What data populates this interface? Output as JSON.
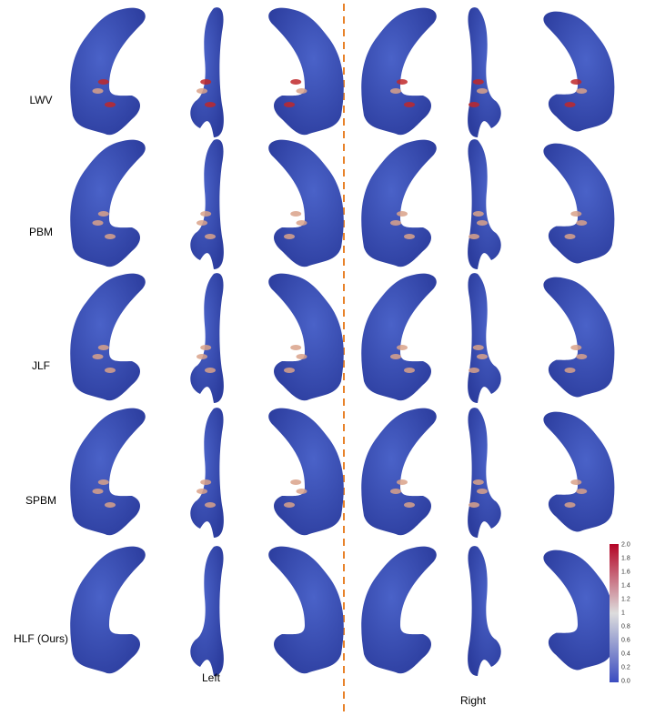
{
  "rows": [
    "LWV",
    "PBM",
    "JLF",
    "SPBM",
    "HLF (Ours)"
  ],
  "columns": [
    "Left",
    "Right"
  ],
  "colorbar": {
    "ticks": [
      "2.0",
      "1.8",
      "1.6",
      "1.4",
      "1.2",
      "1",
      "0.8",
      "0.6",
      "0.4",
      "0.2",
      "0.0"
    ]
  }
}
